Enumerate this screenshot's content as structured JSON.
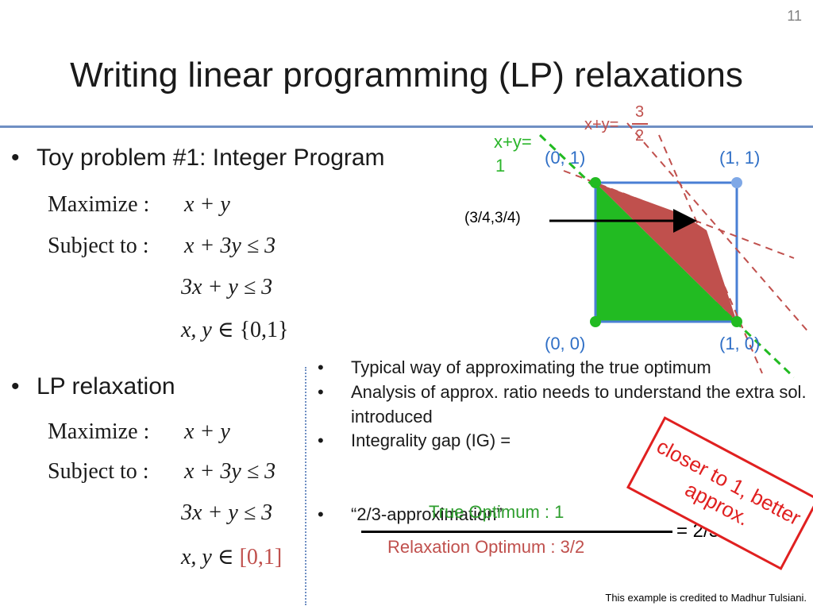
{
  "slide_number": "11",
  "title": "Writing linear programming (LP) relaxations",
  "bullet1": {
    "text": "Toy problem #1: Integer Program",
    "maximize_label": "Maximize :",
    "maximize_expr": "x + y",
    "subject_label": "Subject to :",
    "c1": "x + 3y ≤ 3",
    "c2": "3x + y ≤ 3",
    "c3_vars": "x, y ∈",
    "c3_set": "{0,1}"
  },
  "bullet2": {
    "text": "LP relaxation",
    "maximize_label": "Maximize :",
    "maximize_expr": "x + y",
    "subject_label": "Subject to :",
    "c1": "x + 3y ≤ 3",
    "c2": "3x + y ≤ 3",
    "c3_vars": "x, y ∈",
    "c3_set": "[0,1]"
  },
  "diagram": {
    "label_01": "(0, 1)",
    "label_11": "(1, 1)",
    "label_00": "(0, 0)",
    "label_10": "(1, 0)",
    "label_mid": "(3/4,3/4)",
    "line_green_label_a": "x+y=",
    "line_green_label_b": "1",
    "line_red_label": "x+y=",
    "line_red_num": "3",
    "line_red_den": "2",
    "colors": {
      "green": "#22bb22",
      "red": "#c0504d",
      "blue": "#4a7fd4"
    }
  },
  "notes": {
    "items": [
      "Typical way of approximating the true optimum",
      "Analysis of approx. ratio needs to understand the extra sol. introduced",
      "Integrality gap (IG) =",
      "“2/3-approximation”"
    ],
    "frac_top": "True Optimum : 1",
    "frac_bottom": "Relaxation Optimum : 3/2",
    "frac_result": "= 2/3"
  },
  "callout": "closer to 1, better approx.",
  "credit": "This example is credited to Madhur Tulsiani."
}
